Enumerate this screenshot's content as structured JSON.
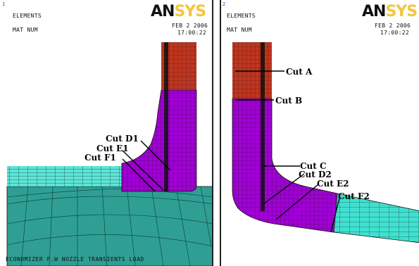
{
  "left": {
    "panel_number": "1",
    "title": "ELEMENTS",
    "subtitle": "MAT  NUM",
    "date": "FEB  2 2006",
    "time": "17:00:22",
    "logo_dark": "AN",
    "logo_light": "SYS",
    "labels": {
      "d1": "Cut D1",
      "e1": "Cut E1",
      "f1": "Cut F1"
    },
    "footer": "ECONOMIZER F.W NOZZLE TRANSIENTS LOAD"
  },
  "right": {
    "panel_number": "2",
    "title": "ELEMENTS",
    "subtitle": "MAT  NUM",
    "date": "FEB  2 2006",
    "time": "17:00:22",
    "logo_dark": "AN",
    "logo_light": "SYS",
    "labels": {
      "a": "Cut A",
      "b": "Cut B",
      "c": "Cut C",
      "d2": "Cut D2",
      "e2": "Cut E2",
      "f2": "Cut F2"
    }
  },
  "colors": {
    "red": "#c0351e",
    "purple": "#a100d6",
    "cyan": "#40e0d0",
    "teal": "#2f9f94"
  }
}
